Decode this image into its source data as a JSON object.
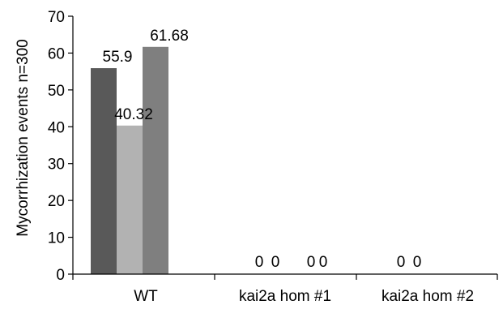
{
  "chart_data": {
    "type": "bar",
    "categories": [
      "WT",
      "kai2a hom #1",
      "kai2a hom #2"
    ],
    "series": [
      {
        "values": [
          55.9,
          0,
          0
        ],
        "color": "#595959"
      },
      {
        "values": [
          40.32,
          0,
          0
        ],
        "color": "#b2b2b2"
      },
      {
        "values": [
          61.68,
          0,
          null
        ],
        "color": "#7f7f7f"
      },
      {
        "values": [
          null,
          0,
          null
        ],
        "color": "#999999"
      }
    ],
    "data_labels": [
      [
        "55.9",
        "40.32",
        "61.68",
        ""
      ],
      [
        "0",
        "0",
        "0",
        "0"
      ],
      [
        "0",
        "0",
        "",
        ""
      ]
    ],
    "title": "",
    "xlabel": "",
    "ylabel": "Mycorrhization events n=300",
    "ylim": [
      0,
      70
    ],
    "yticks": [
      0,
      10,
      20,
      30,
      40,
      50,
      60,
      70
    ],
    "grid": false,
    "legend": "none"
  }
}
